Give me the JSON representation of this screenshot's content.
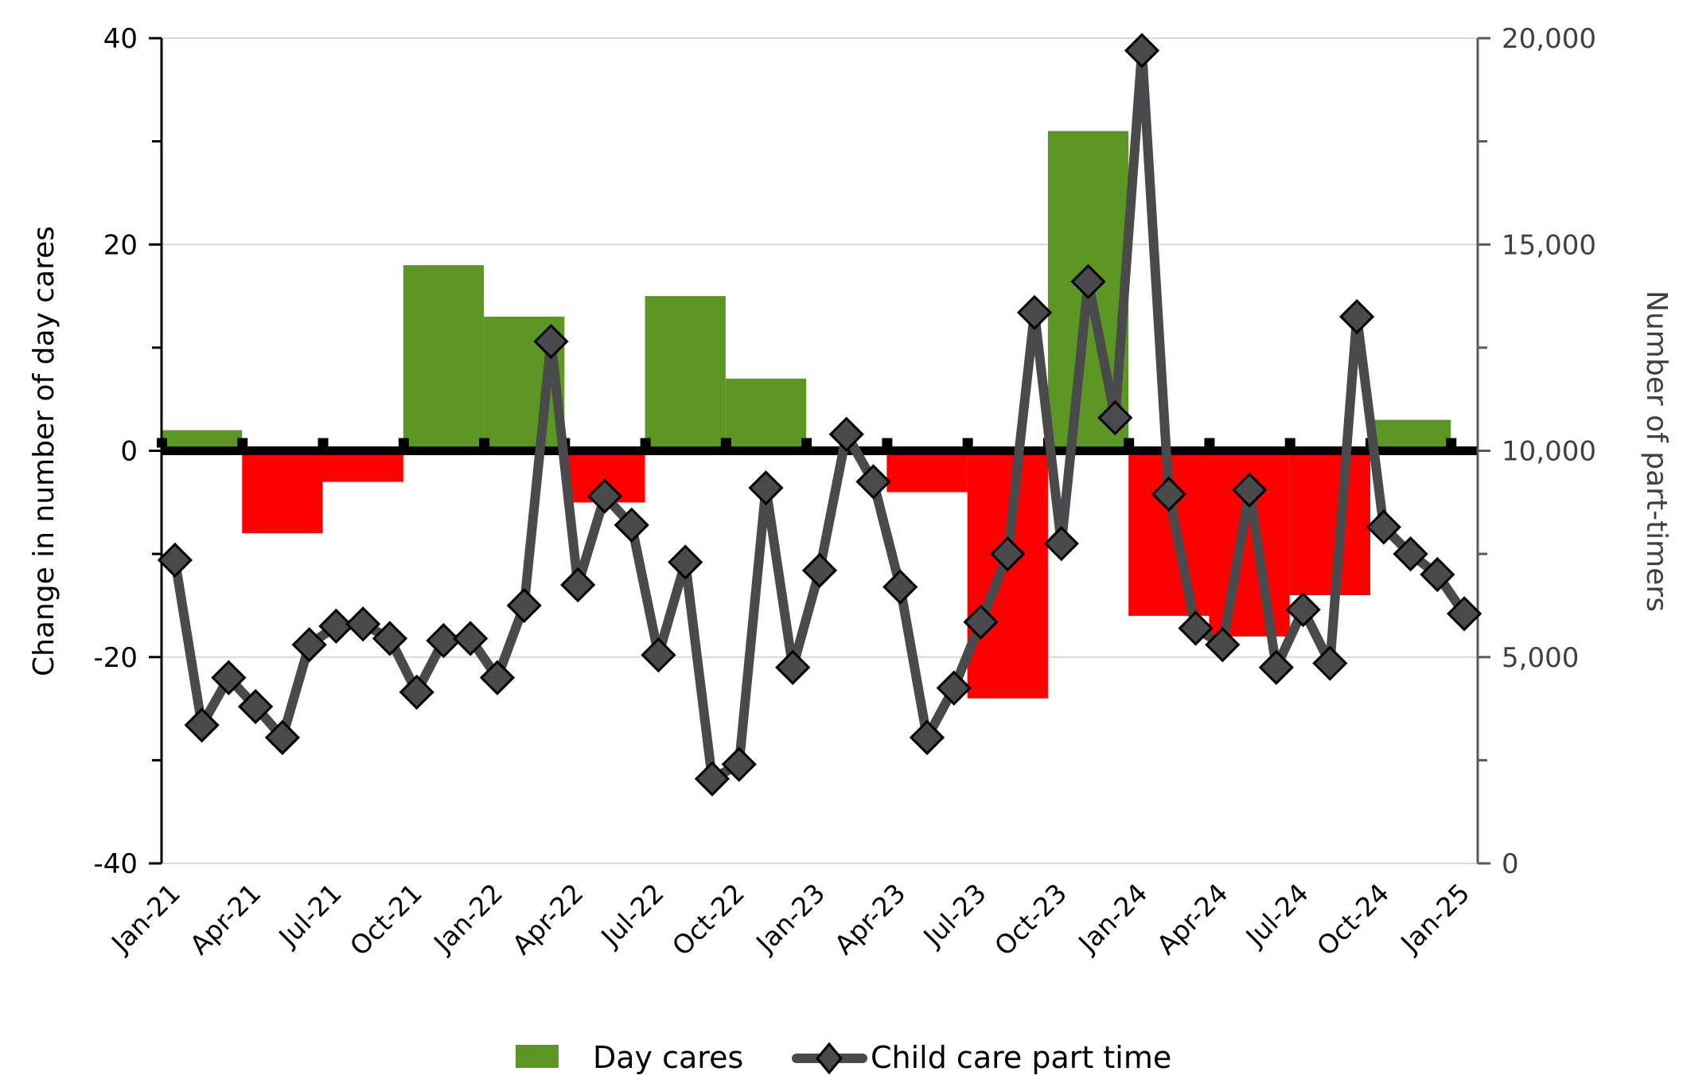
{
  "chart_data": {
    "type": "bar+line",
    "title": "",
    "xlabel": "",
    "ylabel": "Change in number of day cares",
    "y2label": "Number of part-timers",
    "ylim": [
      -40,
      40
    ],
    "y2lim": [
      0,
      20000
    ],
    "yticks": [
      "40",
      "20",
      "0",
      "-20",
      "-40"
    ],
    "ytick_values": [
      40,
      20,
      0,
      -20,
      -40
    ],
    "y2ticks": [
      "20,000",
      "15,000",
      "10,000",
      "5,000",
      "0"
    ],
    "y2tick_values": [
      20000,
      15000,
      10000,
      5000,
      0
    ],
    "grid": true,
    "legend_position": "bottom-center",
    "x_tick_labels": [
      "Jan-21",
      "Apr-21",
      "Jul-21",
      "Oct-21",
      "Jan-22",
      "Apr-22",
      "Jul-22",
      "Oct-22",
      "Jan-23",
      "Apr-23",
      "Jul-23",
      "Oct-23",
      "Jan-24",
      "Apr-24",
      "Jul-24",
      "Oct-24",
      "Jan-25"
    ],
    "colors": {
      "positive_bar": "#5c9623",
      "negative_bar": "#ff0000",
      "line": "#4a4a4c",
      "zero_line": "#000000",
      "grid": "#d9d9d9",
      "right_axis": "#595959"
    },
    "series": [
      {
        "name": "Day cares",
        "type": "bar",
        "axis": "left",
        "periods": [
          "Jan-21",
          "Apr-21",
          "Jul-21",
          "Oct-21",
          "Jan-22",
          "Apr-22",
          "Jul-22",
          "Oct-22",
          "Jan-23",
          "Apr-23",
          "Jul-23",
          "Oct-23",
          "Jan-24",
          "Apr-24",
          "Jul-24",
          "Oct-24"
        ],
        "values": [
          2,
          -8,
          -3,
          18,
          13,
          -5,
          15,
          7,
          0,
          -4,
          -24,
          31,
          -16,
          -18,
          -14,
          3
        ]
      },
      {
        "name": "Child care part time",
        "type": "line",
        "axis": "right",
        "marker": "diamond",
        "periods": [
          "Jan-21",
          "Feb-21",
          "Mar-21",
          "Apr-21",
          "May-21",
          "Jun-21",
          "Jul-21",
          "Aug-21",
          "Sep-21",
          "Oct-21",
          "Nov-21",
          "Dec-21",
          "Jan-22",
          "Feb-22",
          "Mar-22",
          "Apr-22",
          "May-22",
          "Jun-22",
          "Jul-22",
          "Aug-22",
          "Sep-22",
          "Oct-22",
          "Nov-22",
          "Dec-22",
          "Jan-23",
          "Feb-23",
          "Mar-23",
          "Apr-23",
          "May-23",
          "Jun-23",
          "Jul-23",
          "Aug-23",
          "Sep-23",
          "Oct-23",
          "Nov-23",
          "Dec-23",
          "Jan-24",
          "Feb-24",
          "Mar-24",
          "Apr-24",
          "May-24",
          "Jun-24",
          "Jul-24",
          "Aug-24",
          "Sep-24",
          "Oct-24",
          "Nov-24",
          "Dec-24",
          "Jan-25"
        ],
        "values": [
          7350,
          3350,
          4500,
          3800,
          3050,
          5300,
          5750,
          5800,
          5450,
          4150,
          5400,
          5450,
          4500,
          6250,
          12650,
          6750,
          8900,
          8200,
          5050,
          7300,
          2050,
          2400,
          9100,
          4750,
          7100,
          10400,
          9250,
          6700,
          3050,
          4250,
          5850,
          7500,
          13350,
          7750,
          14100,
          10800,
          19700,
          8950,
          5700,
          5300,
          9050,
          4750,
          6150,
          4850,
          13250,
          8150,
          7500,
          7000,
          6050
        ]
      }
    ]
  },
  "legend": {
    "items": [
      {
        "label": "Day cares",
        "symbol": "green-square"
      },
      {
        "label": "Child care part time",
        "symbol": "line-diamond"
      }
    ]
  }
}
